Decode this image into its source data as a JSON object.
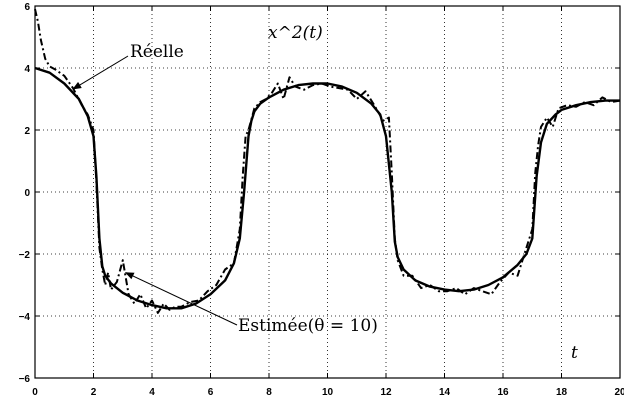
{
  "chart_data": {
    "type": "line",
    "title": "x^2(t)",
    "xlabel": "t",
    "ylabel": "",
    "xlim": [
      0,
      20
    ],
    "ylim": [
      -6,
      6
    ],
    "grid": true,
    "x_ticks": [
      0,
      2,
      4,
      6,
      8,
      10,
      12,
      14,
      16,
      18,
      20
    ],
    "y_ticks": [
      -6,
      -4,
      -2,
      0,
      2,
      4,
      6
    ],
    "annotations": {
      "reelle": "Réelle",
      "estimee": "Estimée(θ = 10)"
    },
    "series": [
      {
        "name": "Réelle",
        "style": "solid",
        "x": [
          0,
          0.5,
          1,
          1.5,
          1.8,
          2.0,
          2.1,
          2.2,
          2.3,
          2.4,
          2.6,
          3.0,
          3.5,
          4.0,
          4.5,
          5.0,
          5.5,
          6.0,
          6.5,
          6.8,
          7.0,
          7.15,
          7.3,
          7.4,
          7.5,
          7.7,
          8.0,
          8.5,
          9.0,
          9.5,
          10.0,
          10.5,
          11.0,
          11.5,
          11.8,
          12.0,
          12.2,
          12.3,
          12.4,
          12.6,
          13.0,
          13.5,
          14.0,
          14.5,
          15.0,
          15.5,
          16.0,
          16.5,
          16.8,
          17.0,
          17.15,
          17.3,
          17.5,
          17.8,
          18.0,
          18.5,
          19.0,
          19.5,
          20.0
        ],
        "y": [
          4.0,
          3.85,
          3.5,
          3.0,
          2.45,
          1.8,
          0.5,
          -1.5,
          -2.4,
          -2.7,
          -2.95,
          -3.25,
          -3.5,
          -3.65,
          -3.75,
          -3.75,
          -3.6,
          -3.3,
          -2.85,
          -2.3,
          -1.5,
          0.0,
          1.8,
          2.3,
          2.6,
          2.85,
          3.05,
          3.3,
          3.45,
          3.5,
          3.5,
          3.4,
          3.2,
          2.85,
          2.5,
          1.8,
          0.0,
          -1.6,
          -2.1,
          -2.5,
          -2.85,
          -3.05,
          -3.15,
          -3.2,
          -3.15,
          -3.0,
          -2.75,
          -2.35,
          -2.0,
          -1.5,
          0.5,
          1.6,
          2.2,
          2.5,
          2.65,
          2.8,
          2.9,
          2.95,
          2.95
        ]
      },
      {
        "name": "Estimée(θ = 10)",
        "style": "dashdot",
        "x": [
          0,
          0.1,
          0.2,
          0.35,
          0.5,
          0.7,
          1.0,
          1.3,
          1.6,
          1.8,
          2.0,
          2.1,
          2.2,
          2.3,
          2.4,
          2.5,
          2.6,
          2.8,
          3.0,
          3.2,
          3.4,
          3.6,
          3.8,
          4.0,
          4.2,
          4.4,
          4.6,
          4.8,
          5.0,
          5.3,
          5.6,
          5.9,
          6.2,
          6.5,
          6.8,
          7.0,
          7.1,
          7.2,
          7.3,
          7.5,
          7.7,
          7.9,
          8.1,
          8.3,
          8.5,
          8.7,
          8.9,
          9.2,
          9.5,
          9.8,
          10.1,
          10.4,
          10.7,
          11.0,
          11.3,
          11.6,
          11.9,
          12.1,
          12.2,
          12.3,
          12.4,
          12.6,
          12.9,
          13.2,
          13.5,
          13.8,
          14.1,
          14.4,
          14.7,
          15.0,
          15.3,
          15.6,
          15.9,
          16.2,
          16.5,
          16.8,
          17.0,
          17.1,
          17.2,
          17.3,
          17.5,
          17.7,
          17.9,
          18.2,
          18.5,
          18.8,
          19.1,
          19.4,
          19.7,
          20.0
        ],
        "y": [
          5.9,
          5.5,
          4.9,
          4.3,
          4.05,
          3.95,
          3.75,
          3.35,
          2.8,
          2.5,
          2.0,
          0.3,
          -1.8,
          -2.5,
          -3.0,
          -2.6,
          -3.15,
          -2.9,
          -2.2,
          -3.3,
          -3.6,
          -3.3,
          -3.75,
          -3.5,
          -3.9,
          -3.6,
          -3.8,
          -3.7,
          -3.7,
          -3.55,
          -3.5,
          -3.2,
          -3.0,
          -2.5,
          -2.3,
          -1.2,
          0.5,
          1.8,
          2.0,
          2.7,
          2.9,
          3.0,
          3.2,
          3.5,
          3.0,
          3.7,
          3.4,
          3.3,
          3.45,
          3.5,
          3.4,
          3.35,
          3.3,
          3.0,
          3.25,
          2.8,
          2.3,
          2.4,
          0.6,
          -1.5,
          -2.2,
          -2.7,
          -2.7,
          -3.1,
          -3.0,
          -3.2,
          -3.2,
          -3.1,
          -3.3,
          -3.1,
          -3.2,
          -3.3,
          -2.9,
          -2.6,
          -2.7,
          -1.8,
          -1.2,
          0.6,
          1.5,
          2.1,
          2.4,
          2.1,
          2.7,
          2.8,
          2.75,
          2.9,
          2.8,
          3.05,
          2.9,
          2.95
        ]
      }
    ]
  }
}
